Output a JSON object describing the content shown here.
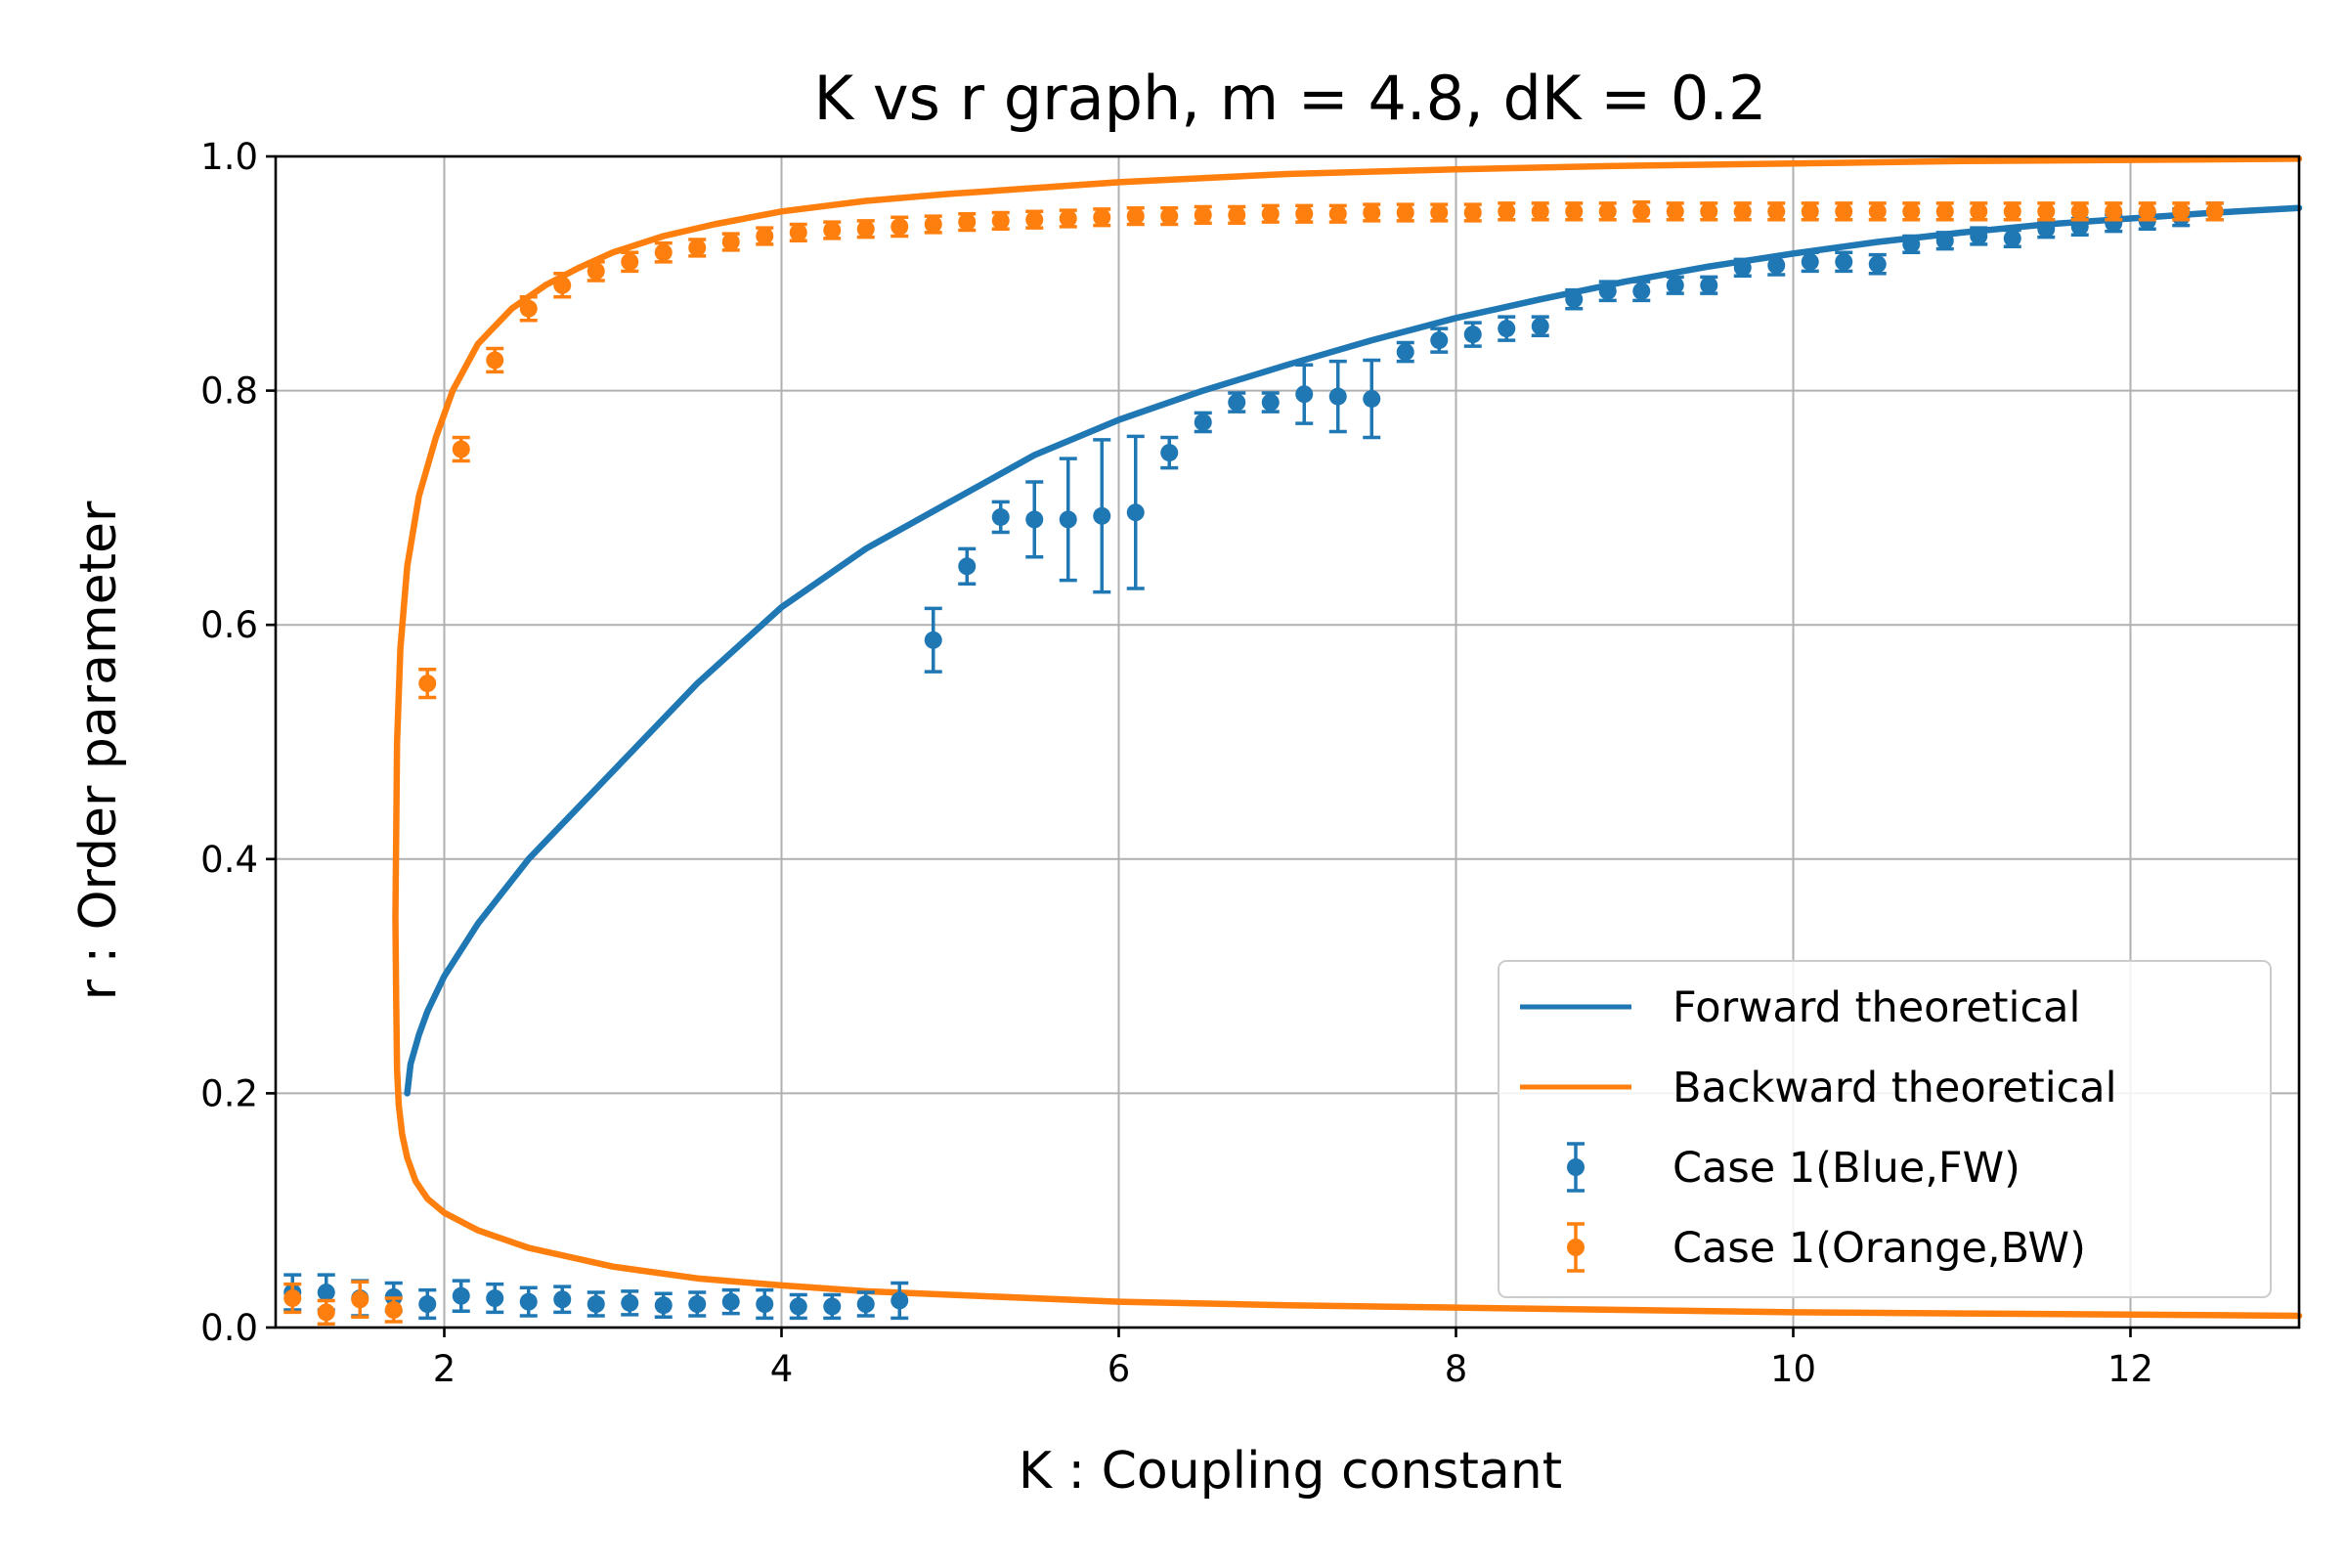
{
  "chart_data": {
    "type": "line",
    "title": "K vs r graph, m = 4.8, dK = 0.2",
    "xlabel": "K : Coupling constant",
    "ylabel": "r : Order parameter",
    "xlim": [
      1.0,
      13.0
    ],
    "ylim": [
      0.0,
      1.0
    ],
    "xticks": [
      "2",
      "4",
      "6",
      "8",
      "10",
      "12"
    ],
    "yticks": [
      "0.0",
      "0.2",
      "0.4",
      "0.6",
      "0.8",
      "1.0"
    ],
    "grid": true,
    "legend_position": "lower-right",
    "series": [
      {
        "name": "Forward theoretical",
        "kind": "line",
        "color": "#1f77b4",
        "x": [
          1.78,
          1.8,
          1.85,
          1.9,
          2.0,
          2.2,
          2.5,
          3.0,
          3.5,
          4.0,
          4.5,
          5.0,
          5.5,
          6.0,
          6.5,
          7.0,
          7.5,
          8.0,
          8.5,
          9.0,
          9.5,
          10.0,
          10.5,
          11.0,
          11.5,
          12.0,
          12.5,
          13.0
        ],
        "y": [
          0.2,
          0.225,
          0.25,
          0.27,
          0.3,
          0.345,
          0.4,
          0.475,
          0.55,
          0.615,
          0.665,
          0.705,
          0.745,
          0.775,
          0.8,
          0.822,
          0.843,
          0.862,
          0.878,
          0.893,
          0.906,
          0.917,
          0.927,
          0.935,
          0.942,
          0.947,
          0.952,
          0.956
        ]
      },
      {
        "name": "Backward theoretical",
        "kind": "line",
        "color": "#ff7f0e",
        "x": [
          13.0,
          12.0,
          11.0,
          10.0,
          9.0,
          8.0,
          7.0,
          6.0,
          5.0,
          4.5,
          4.0,
          3.5,
          3.0,
          2.5,
          2.2,
          2.0,
          1.9,
          1.83,
          1.78,
          1.75,
          1.73,
          1.72,
          1.715,
          1.71,
          1.715,
          1.72,
          1.74,
          1.78,
          1.85,
          1.95,
          2.05,
          2.2,
          2.4,
          2.6,
          2.8,
          3.0,
          3.3,
          3.6,
          4.0,
          4.5,
          5.0,
          6.0,
          7.0,
          8.0,
          9.0,
          10.0,
          11.0,
          12.0,
          13.0
        ],
        "y": [
          0.01,
          0.011,
          0.012,
          0.013,
          0.015,
          0.017,
          0.019,
          0.022,
          0.028,
          0.031,
          0.036,
          0.042,
          0.052,
          0.068,
          0.083,
          0.098,
          0.11,
          0.125,
          0.145,
          0.165,
          0.19,
          0.22,
          0.28,
          0.35,
          0.42,
          0.5,
          0.58,
          0.65,
          0.71,
          0.76,
          0.8,
          0.84,
          0.87,
          0.89,
          0.905,
          0.918,
          0.932,
          0.942,
          0.953,
          0.962,
          0.968,
          0.978,
          0.985,
          0.989,
          0.992,
          0.994,
          0.996,
          0.997,
          0.998
        ]
      },
      {
        "name": "Case 1(Blue,FW)",
        "kind": "errorbar",
        "color": "#1f77b4",
        "x": [
          1.1,
          1.3,
          1.5,
          1.7,
          1.9,
          2.1,
          2.3,
          2.5,
          2.7,
          2.9,
          3.1,
          3.3,
          3.5,
          3.7,
          3.9,
          4.1,
          4.3,
          4.5,
          4.7,
          4.9,
          5.1,
          5.3,
          5.5,
          5.7,
          5.9,
          6.1,
          6.3,
          6.5,
          6.7,
          6.9,
          7.1,
          7.3,
          7.5,
          7.7,
          7.9,
          8.1,
          8.3,
          8.5,
          8.7,
          8.9,
          9.1,
          9.3,
          9.5,
          9.7,
          9.9,
          10.1,
          10.3,
          10.5,
          10.7,
          10.9,
          11.1,
          11.3,
          11.5,
          11.7,
          11.9,
          12.1,
          12.3,
          12.5
        ],
        "y": [
          0.03,
          0.03,
          0.025,
          0.026,
          0.02,
          0.027,
          0.025,
          0.022,
          0.024,
          0.02,
          0.021,
          0.019,
          0.02,
          0.022,
          0.02,
          0.018,
          0.018,
          0.02,
          0.023,
          0.587,
          0.65,
          0.692,
          0.69,
          0.69,
          0.693,
          0.696,
          0.747,
          0.773,
          0.79,
          0.79,
          0.797,
          0.795,
          0.793,
          0.833,
          0.843,
          0.848,
          0.853,
          0.855,
          0.878,
          0.885,
          0.885,
          0.89,
          0.89,
          0.905,
          0.907,
          0.91,
          0.91,
          0.908,
          0.925,
          0.928,
          0.932,
          0.93,
          0.938,
          0.94,
          0.943,
          0.945,
          0.948,
          0.953
        ],
        "yerr": [
          0.015,
          0.015,
          0.015,
          0.012,
          0.012,
          0.013,
          0.012,
          0.012,
          0.011,
          0.01,
          0.01,
          0.01,
          0.01,
          0.01,
          0.012,
          0.01,
          0.01,
          0.01,
          0.015,
          0.027,
          0.015,
          0.013,
          0.032,
          0.052,
          0.065,
          0.065,
          0.013,
          0.008,
          0.008,
          0.008,
          0.025,
          0.03,
          0.033,
          0.008,
          0.01,
          0.01,
          0.01,
          0.008,
          0.008,
          0.008,
          0.008,
          0.007,
          0.007,
          0.007,
          0.008,
          0.008,
          0.008,
          0.008,
          0.007,
          0.007,
          0.007,
          0.007,
          0.007,
          0.007,
          0.007,
          0.007,
          0.007,
          0.007
        ]
      },
      {
        "name": "Case 1(Orange,BW)",
        "kind": "errorbar",
        "color": "#ff7f0e",
        "x": [
          1.1,
          1.3,
          1.5,
          1.7,
          1.9,
          2.1,
          2.3,
          2.5,
          2.7,
          2.9,
          3.1,
          3.3,
          3.5,
          3.7,
          3.9,
          4.1,
          4.3,
          4.5,
          4.7,
          4.9,
          5.1,
          5.3,
          5.5,
          5.7,
          5.9,
          6.1,
          6.3,
          6.5,
          6.7,
          6.9,
          7.1,
          7.3,
          7.5,
          7.7,
          7.9,
          8.1,
          8.3,
          8.5,
          8.7,
          8.9,
          9.1,
          9.3,
          9.5,
          9.7,
          9.9,
          10.1,
          10.3,
          10.5,
          10.7,
          10.9,
          11.1,
          11.3,
          11.5,
          11.7,
          11.9,
          12.1,
          12.3,
          12.5
        ],
        "y": [
          0.025,
          0.013,
          0.024,
          0.015,
          0.55,
          0.75,
          0.826,
          0.87,
          0.89,
          0.902,
          0.91,
          0.918,
          0.922,
          0.927,
          0.932,
          0.935,
          0.937,
          0.938,
          0.94,
          0.942,
          0.944,
          0.945,
          0.946,
          0.947,
          0.948,
          0.949,
          0.949,
          0.95,
          0.95,
          0.951,
          0.951,
          0.951,
          0.952,
          0.952,
          0.952,
          0.952,
          0.953,
          0.953,
          0.953,
          0.953,
          0.953,
          0.953,
          0.953,
          0.953,
          0.953,
          0.953,
          0.953,
          0.953,
          0.953,
          0.953,
          0.953,
          0.953,
          0.953,
          0.953,
          0.953,
          0.953,
          0.953,
          0.953
        ],
        "yerr": [
          0.012,
          0.01,
          0.015,
          0.01,
          0.012,
          0.01,
          0.01,
          0.01,
          0.01,
          0.008,
          0.008,
          0.008,
          0.007,
          0.007,
          0.007,
          0.007,
          0.007,
          0.007,
          0.008,
          0.007,
          0.007,
          0.007,
          0.007,
          0.007,
          0.007,
          0.007,
          0.007,
          0.007,
          0.007,
          0.007,
          0.007,
          0.007,
          0.007,
          0.007,
          0.007,
          0.007,
          0.007,
          0.007,
          0.007,
          0.007,
          0.008,
          0.007,
          0.007,
          0.007,
          0.007,
          0.007,
          0.007,
          0.007,
          0.007,
          0.007,
          0.007,
          0.007,
          0.007,
          0.007,
          0.007,
          0.007,
          0.007,
          0.007
        ]
      }
    ]
  }
}
